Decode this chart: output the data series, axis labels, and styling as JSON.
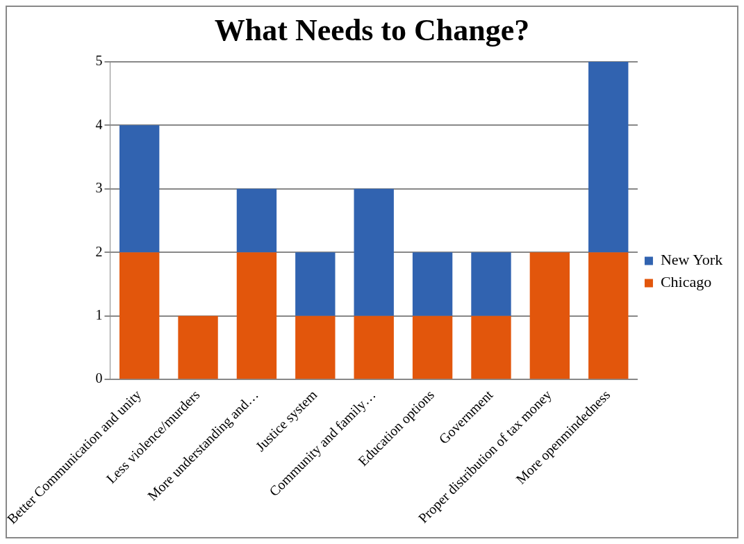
{
  "chart_data": {
    "type": "bar",
    "title": "What Needs to Change?",
    "categories": [
      "Better Communication and unity",
      "Less violence/murders",
      "More understanding and…",
      "Justice system",
      "Community and family…",
      "Education options",
      "Government",
      "Proper distribution of tax money",
      "More openmindedness"
    ],
    "stacked": true,
    "series": [
      {
        "name": "Chicago",
        "color": "#e2560c",
        "values": [
          2,
          1,
          2,
          1,
          1,
          1,
          1,
          2,
          2
        ]
      },
      {
        "name": "New York",
        "color": "#3163b0",
        "values": [
          2,
          0,
          1,
          1,
          2,
          1,
          1,
          0,
          3
        ]
      }
    ],
    "ylim": [
      0,
      5
    ],
    "yticks": [
      0,
      1,
      2,
      3,
      4,
      5
    ],
    "grid": "y",
    "legend": "right"
  }
}
